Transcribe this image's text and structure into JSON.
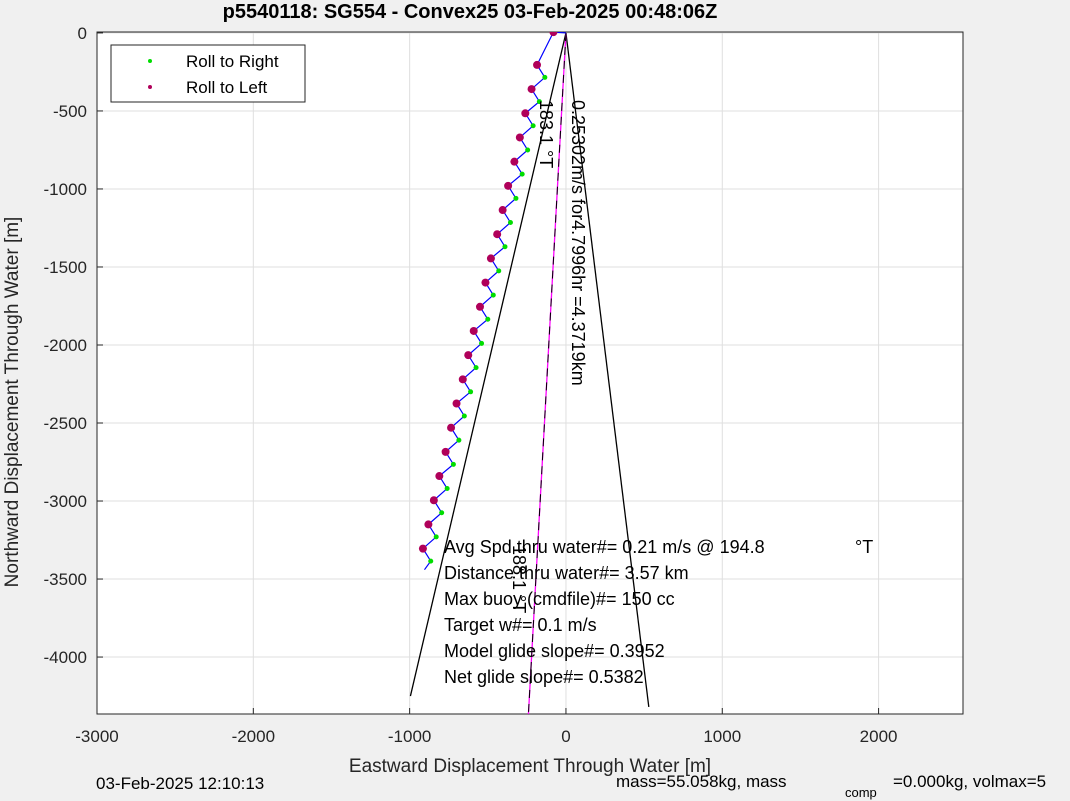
{
  "chart_data": {
    "type": "scatter",
    "title": "p5540118: SG554 - Convex25 03-Feb-2025 00:48:06Z",
    "xlabel": "Eastward Displacement Through Water [m]",
    "ylabel": "Northward Displacement Through Water [m]",
    "xlim": [
      -3000,
      2540
    ],
    "ylim": [
      -4365,
      6
    ],
    "xticks": [
      -3000,
      -2000,
      -1000,
      0,
      1000,
      2000
    ],
    "yticks": [
      0,
      -500,
      -1000,
      -1500,
      -2000,
      -2500,
      -3000,
      -3500,
      -4000
    ],
    "grid": true,
    "legend": "upper left",
    "series": [
      {
        "name": "Roll to Right",
        "color": "#00dd00",
        "x": [
          -135,
          -170,
          -210,
          -245,
          -280,
          -320,
          -355,
          -390,
          -430,
          -465,
          -500,
          -540,
          -575,
          -610,
          -650,
          -685,
          -720,
          -760,
          -795,
          -830,
          -865
        ],
        "y": [
          -285,
          -440,
          -595,
          -750,
          -905,
          -1060,
          -1215,
          -1370,
          -1525,
          -1680,
          -1835,
          -1990,
          -2145,
          -2300,
          -2455,
          -2610,
          -2765,
          -2920,
          -3075,
          -3230,
          -3385
        ]
      },
      {
        "name": "Roll to Left",
        "color": "#b0005a",
        "x": [
          -80,
          -185,
          -220,
          -260,
          -295,
          -330,
          -370,
          -405,
          -440,
          -480,
          -515,
          -550,
          -590,
          -625,
          -660,
          -700,
          -735,
          -770,
          -810,
          -845,
          -880,
          -915
        ],
        "y": [
          5,
          -205,
          -360,
          -515,
          -670,
          -825,
          -980,
          -1135,
          -1290,
          -1445,
          -1600,
          -1755,
          -1910,
          -2065,
          -2220,
          -2375,
          -2530,
          -2685,
          -2840,
          -2995,
          -3150,
          -3305
        ]
      }
    ],
    "track": {
      "color": "#0000ff",
      "x": [
        0,
        -80,
        -185,
        -135,
        -220,
        -170,
        -260,
        -210,
        -295,
        -245,
        -330,
        -280,
        -370,
        -320,
        -405,
        -355,
        -440,
        -390,
        -480,
        -430,
        -515,
        -465,
        -550,
        -500,
        -590,
        -540,
        -625,
        -575,
        -660,
        -610,
        -700,
        -650,
        -735,
        -685,
        -770,
        -720,
        -810,
        -760,
        -845,
        -795,
        -880,
        -830,
        -915,
        -865,
        -905
      ],
      "y": [
        0,
        5,
        -205,
        -285,
        -360,
        -440,
        -515,
        -595,
        -670,
        -750,
        -825,
        -905,
        -980,
        -1060,
        -1135,
        -1215,
        -1290,
        -1370,
        -1445,
        -1525,
        -1600,
        -1680,
        -1755,
        -1835,
        -1910,
        -1990,
        -2065,
        -2145,
        -2220,
        -2300,
        -2375,
        -2455,
        -2530,
        -2610,
        -2685,
        -2765,
        -2840,
        -2920,
        -2995,
        -3075,
        -3150,
        -3230,
        -3305,
        -3385,
        -3440
      ]
    },
    "lines": [
      {
        "color": "#000000",
        "x": [
          0,
          -995
        ],
        "y": [
          0,
          -4250
        ]
      },
      {
        "color": "#000000",
        "x": [
          0,
          530
        ],
        "y": [
          0,
          -4320
        ]
      },
      {
        "color": "#ff00ff",
        "x": [
          0,
          -240
        ],
        "y": [
          0,
          -4365
        ]
      }
    ],
    "heading_labels": [
      "183.1 °T",
      "0.25302m/s for4.7996hr =4.3719km",
      "188.1 °T"
    ],
    "annotations": [
      "Avg Spd thru water#=  0.21 m/s @ 194.8",
      "Distance thru water#=  3.57 km",
      "Max buoy (cmdfile)#= 150 cc",
      "Target w#= 0.1 m/s",
      "Model glide slope#= 0.3952",
      "Net glide slope#= 0.5382"
    ],
    "annotation_unit": "°T",
    "footer_left": "03-Feb-2025 12:10:13",
    "footer_right": [
      "mass=55.058kg, mass",
      "comp",
      "=0.000kg, volmax=5"
    ]
  }
}
